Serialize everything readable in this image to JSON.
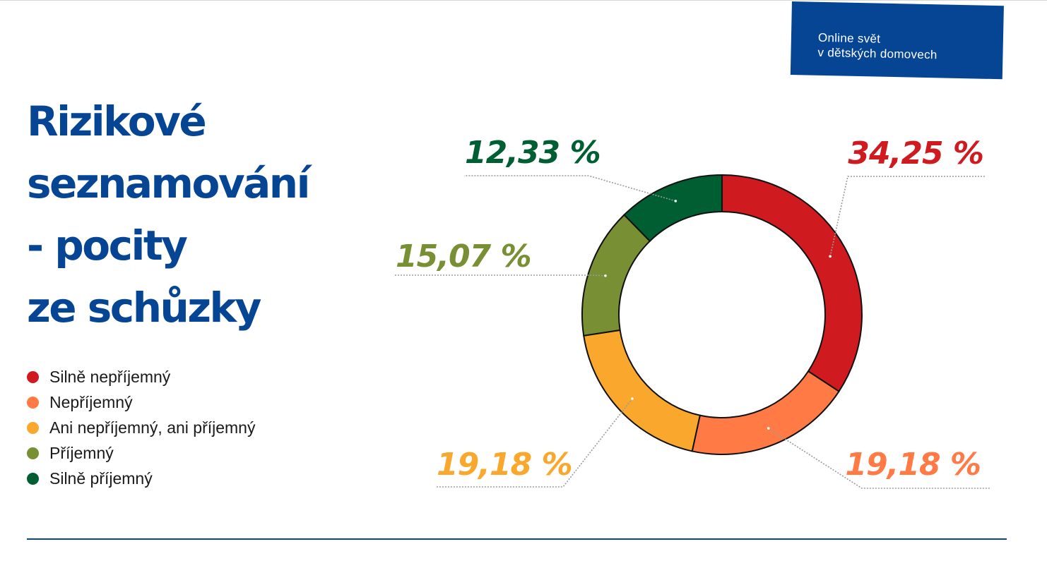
{
  "badge": {
    "line1": "Online svět",
    "line2": "v dětských domovech"
  },
  "title_lines": [
    "Rizikové",
    "seznamování",
    "- pocity",
    "ze schůzky"
  ],
  "chart_data": {
    "type": "pie",
    "variant": "donut",
    "title": "Rizikové seznamování - pocity ze schůzky",
    "categories": [
      "Silně nepříjemný",
      "Nepříjemný",
      "Ani nepříjemný, ani příjemný",
      "Příjemný",
      "Silně příjemný"
    ],
    "values": [
      34.25,
      19.18,
      19.18,
      15.07,
      12.33
    ],
    "value_labels": [
      "34,25 %",
      "19,18 %",
      "19,18 %",
      "15,07 %",
      "12,33 %"
    ],
    "colors": [
      "#cf1b20",
      "#ff7a45",
      "#f9a82d",
      "#788f33",
      "#005e33"
    ],
    "legend_position": "left"
  }
}
